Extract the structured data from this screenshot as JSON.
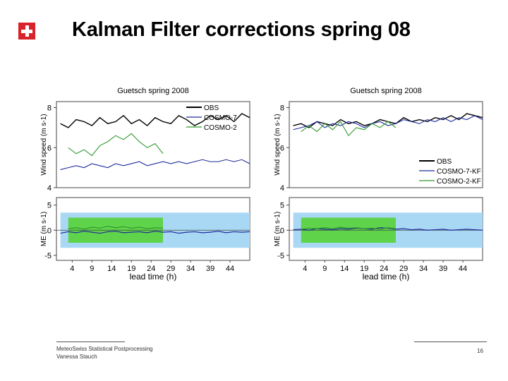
{
  "slide": {
    "title": "Kalman Filter corrections spring 08",
    "footer": {
      "org": "MeteoSwiss Statistical Postprocessing",
      "author": "Vanessa Stauch",
      "page": "16"
    }
  },
  "colors": {
    "obs": "#000000",
    "cosmo7": "#1f2d9c",
    "cosmo2": "#2e9a2e",
    "band_cosmo7": "#a9d8f4",
    "band_cosmo2": "#5fd44a",
    "logo_red": "#d8232a"
  },
  "chart_data": [
    {
      "type": "line",
      "panel": "left",
      "title": "Guetsch spring 2008",
      "upper": {
        "ylabel": "Wind speed (m s-1)",
        "ylim": [
          4,
          8.3
        ],
        "yticks": [
          4,
          6,
          8
        ],
        "legend": [
          "OBS",
          "COSMO-7",
          "COSMO-2"
        ],
        "legend_position": "top-right",
        "series": [
          {
            "name": "OBS",
            "x": [
              1,
              3,
              5,
              7,
              9,
              11,
              13,
              15,
              17,
              19,
              21,
              23,
              25,
              27,
              29,
              31,
              33,
              35,
              37,
              39,
              41,
              43,
              45,
              47,
              49
            ],
            "values": [
              7.2,
              7.0,
              7.4,
              7.3,
              7.1,
              7.5,
              7.2,
              7.3,
              7.6,
              7.2,
              7.4,
              7.1,
              7.5,
              7.3,
              7.2,
              7.6,
              7.4,
              7.1,
              7.3,
              7.6,
              7.4,
              7.6,
              7.3,
              7.7,
              7.5
            ]
          },
          {
            "name": "COSMO-7",
            "x": [
              1,
              3,
              5,
              7,
              9,
              11,
              13,
              15,
              17,
              19,
              21,
              23,
              25,
              27,
              29,
              31,
              33,
              35,
              37,
              39,
              41,
              43,
              45,
              47,
              49
            ],
            "values": [
              4.9,
              5.0,
              5.1,
              5.0,
              5.2,
              5.1,
              5.0,
              5.2,
              5.1,
              5.2,
              5.3,
              5.1,
              5.2,
              5.3,
              5.2,
              5.3,
              5.2,
              5.3,
              5.4,
              5.3,
              5.3,
              5.4,
              5.3,
              5.4,
              5.2
            ]
          },
          {
            "name": "COSMO-2",
            "x": [
              3,
              5,
              7,
              9,
              11,
              13,
              15,
              17,
              19,
              21,
              23,
              25,
              27
            ],
            "values": [
              6.0,
              5.7,
              5.9,
              5.6,
              6.1,
              6.3,
              6.6,
              6.4,
              6.7,
              6.3,
              6.0,
              6.2,
              5.7
            ]
          }
        ]
      },
      "lower": {
        "ylabel": "ME (m s-1)",
        "ylim": [
          -6,
          6.5
        ],
        "yticks": [
          -5,
          0,
          5
        ],
        "series": [
          {
            "name": "COSMO-7",
            "values": [
              -0.6,
              -0.3,
              -0.5,
              -0.2,
              -0.4,
              -0.6,
              -0.3,
              -0.2,
              -0.5,
              -0.4,
              -0.3,
              -0.5,
              -0.2,
              -0.4,
              -0.3,
              -0.6,
              -0.4,
              -0.3,
              -0.5,
              -0.4,
              -0.2,
              -0.5,
              -0.3,
              -0.4,
              -0.3
            ]
          },
          {
            "name": "COSMO-2",
            "values": [
              0.3,
              0.5,
              0.2,
              0.6,
              0.4,
              0.8,
              0.5,
              0.7,
              0.4,
              0.6,
              0.3,
              0.5,
              0.4
            ]
          }
        ],
        "bands": [
          {
            "name": "COSMO-7",
            "x_range": [
              1,
              49
            ],
            "range": [
              -3.5,
              3.5
            ]
          },
          {
            "name": "COSMO-2",
            "x_range": [
              3,
              27
            ],
            "range": [
              -2.5,
              2.5
            ]
          }
        ]
      },
      "xlabel": "lead time (h)",
      "xticks": [
        4,
        9,
        14,
        19,
        24,
        29,
        34,
        39,
        44
      ],
      "xlim": [
        0,
        49
      ]
    },
    {
      "type": "line",
      "panel": "right",
      "title": "Guetsch spring 2008",
      "upper": {
        "ylabel": "Wind speed (m s-1)",
        "ylim": [
          4,
          8.3
        ],
        "yticks": [
          4,
          6,
          8
        ],
        "legend": [
          "OBS",
          "COSMO-7-KF",
          "COSMO-2-KF"
        ],
        "legend_position": "lower-right",
        "series": [
          {
            "name": "OBS",
            "x": [
              1,
              3,
              5,
              7,
              9,
              11,
              13,
              15,
              17,
              19,
              21,
              23,
              25,
              27,
              29,
              31,
              33,
              35,
              37,
              39,
              41,
              43,
              45,
              47,
              49
            ],
            "values": [
              7.1,
              7.2,
              7.0,
              7.3,
              7.2,
              7.1,
              7.4,
              7.2,
              7.3,
              7.1,
              7.2,
              7.4,
              7.3,
              7.2,
              7.5,
              7.3,
              7.4,
              7.3,
              7.5,
              7.4,
              7.6,
              7.4,
              7.7,
              7.6,
              7.5
            ]
          },
          {
            "name": "COSMO-7-KF",
            "x": [
              1,
              3,
              5,
              7,
              9,
              11,
              13,
              15,
              17,
              19,
              21,
              23,
              25,
              27,
              29,
              31,
              33,
              35,
              37,
              39,
              41,
              43,
              45,
              47,
              49
            ],
            "values": [
              6.9,
              7.0,
              7.1,
              7.3,
              7.0,
              7.2,
              7.1,
              7.3,
              7.2,
              7.0,
              7.2,
              7.3,
              7.1,
              7.2,
              7.4,
              7.3,
              7.2,
              7.4,
              7.3,
              7.5,
              7.3,
              7.5,
              7.4,
              7.6,
              7.4
            ]
          },
          {
            "name": "COSMO-2-KF",
            "x": [
              3,
              5,
              7,
              9,
              11,
              13,
              15,
              17,
              19,
              21,
              23,
              25,
              27
            ],
            "values": [
              6.8,
              7.1,
              6.8,
              7.2,
              6.9,
              7.3,
              6.6,
              7.0,
              6.9,
              7.2,
              7.0,
              7.3,
              7.0
            ]
          }
        ]
      },
      "lower": {
        "ylabel": "ME (m s-1)",
        "ylim": [
          -6,
          6.5
        ],
        "yticks": [
          -5,
          0,
          5
        ],
        "series": [
          {
            "name": "COSMO-7-KF",
            "values": [
              0.1,
              0.2,
              0.0,
              0.3,
              0.2,
              0.1,
              0.3,
              0.2,
              0.4,
              0.3,
              0.2,
              0.5,
              0.4,
              0.2,
              0.3,
              0.1,
              0.2,
              0.0,
              0.1,
              0.2,
              0.0,
              0.1,
              0.2,
              0.1,
              0.0
            ]
          },
          {
            "name": "COSMO-2-KF",
            "values": [
              0.2,
              0.4,
              0.3,
              0.5,
              0.3,
              0.6,
              0.4,
              0.5,
              0.3,
              0.4,
              0.2,
              0.5,
              0.3
            ]
          }
        ],
        "bands": [
          {
            "name": "COSMO-7-KF",
            "x_range": [
              1,
              49
            ],
            "range": [
              -3.5,
              3.5
            ]
          },
          {
            "name": "COSMO-2-KF",
            "x_range": [
              3,
              27
            ],
            "range": [
              -2.5,
              2.5
            ]
          }
        ]
      },
      "xlabel": "lead time (h)",
      "xticks": [
        4,
        9,
        14,
        19,
        24,
        29,
        34,
        39,
        44
      ],
      "xlim": [
        0,
        49
      ]
    }
  ]
}
